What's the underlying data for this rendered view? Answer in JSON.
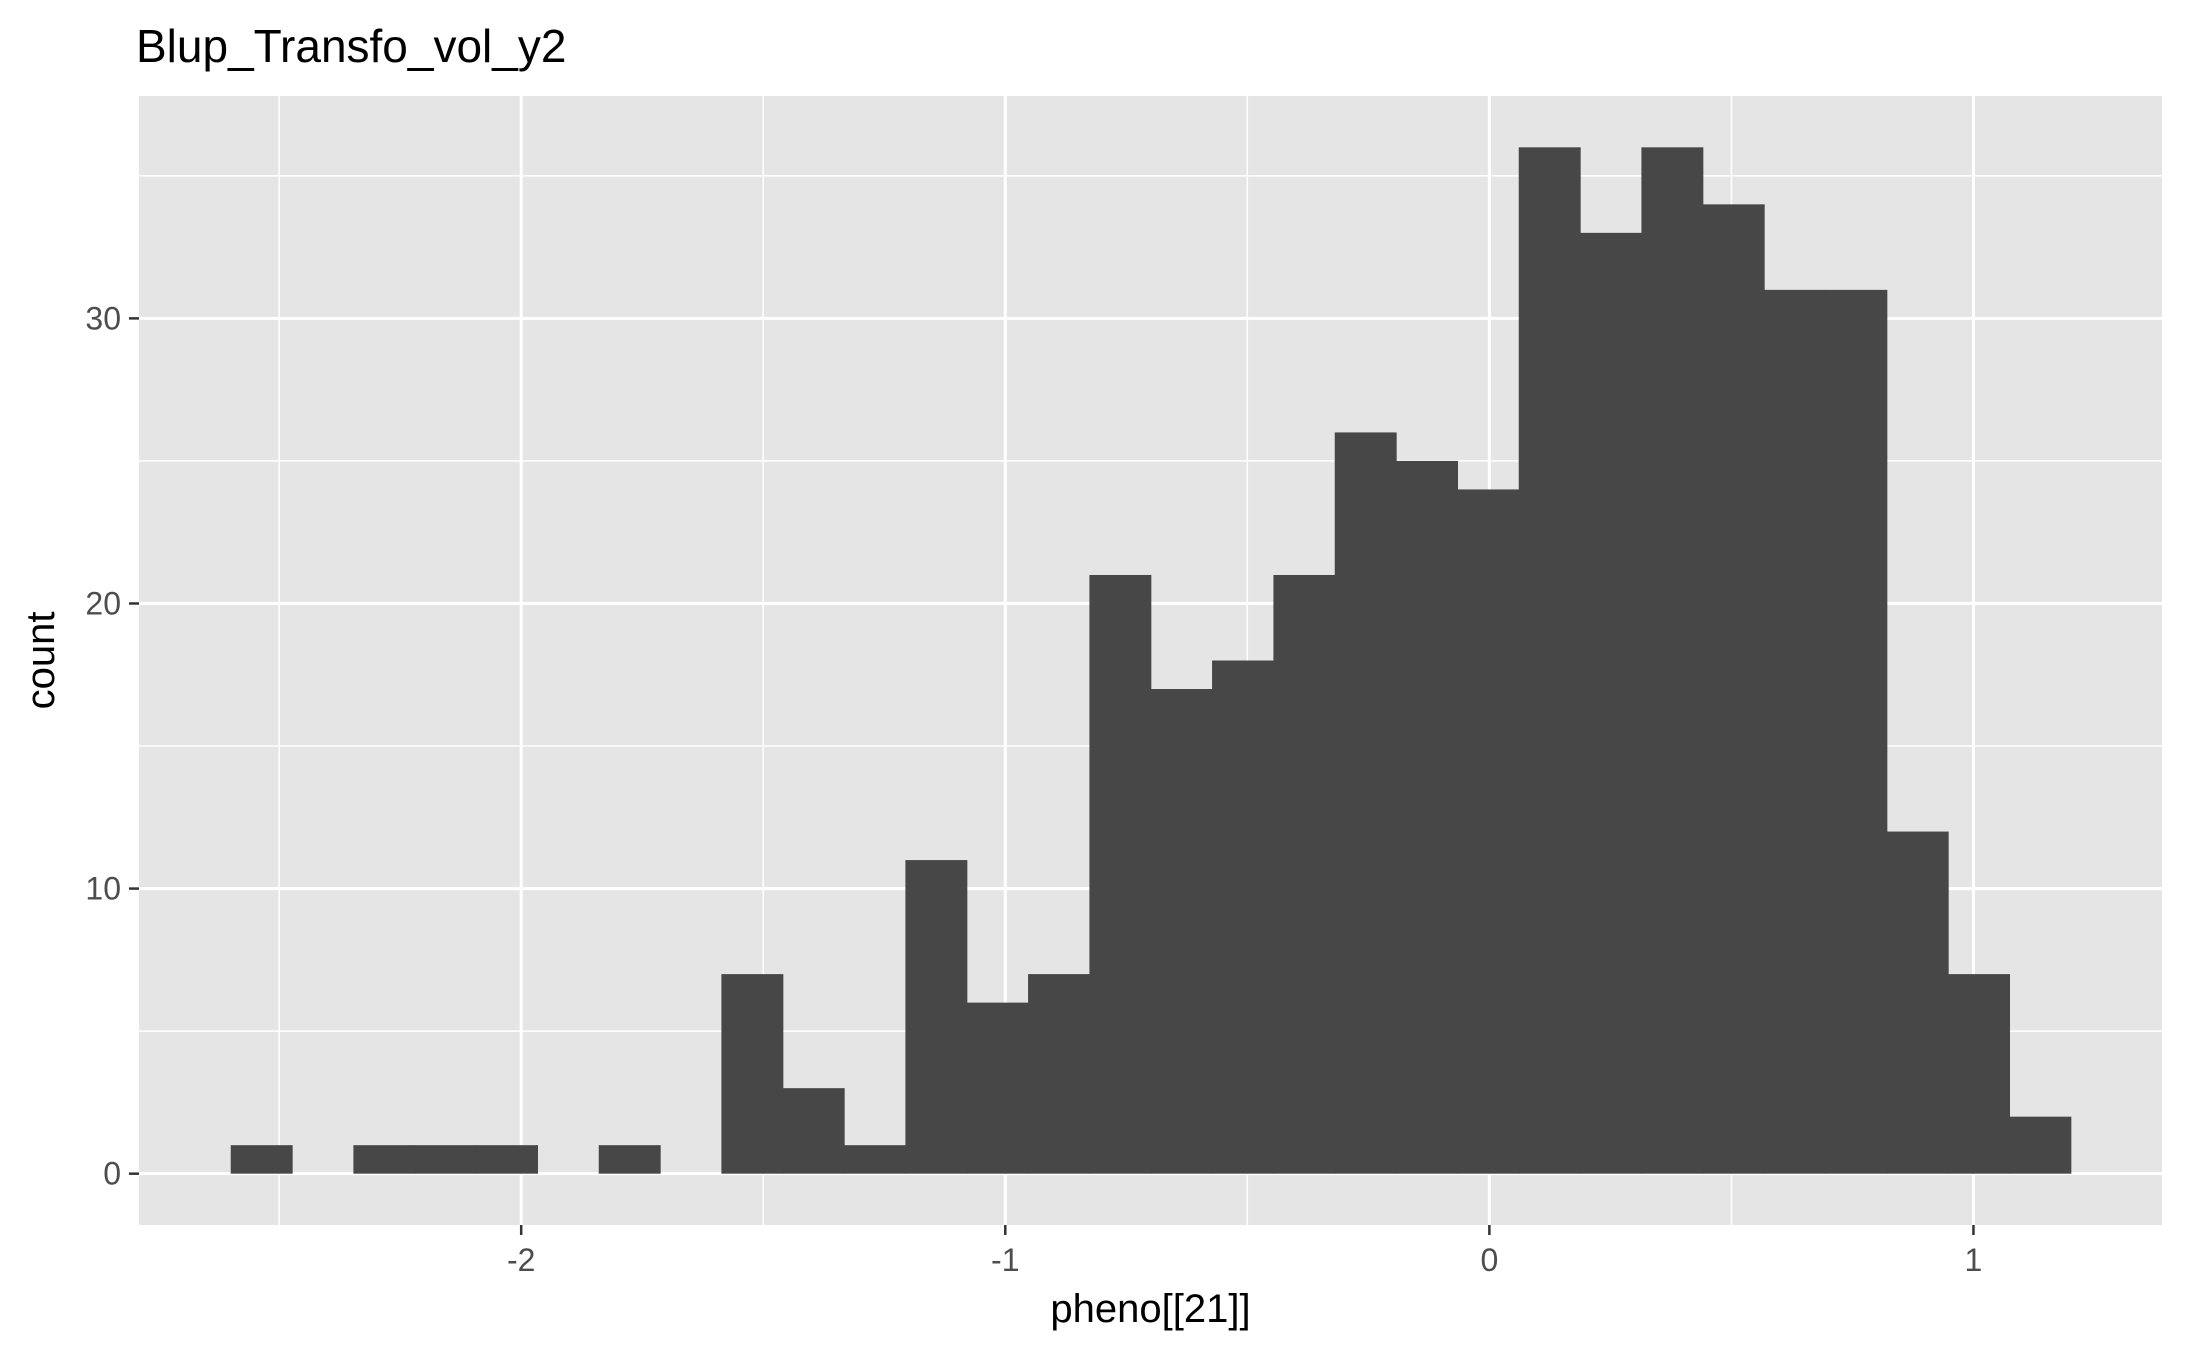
{
  "chart_data": {
    "type": "bar",
    "title": "Blup_Transfo_vol_y2",
    "xlabel": "pheno[[21]]",
    "ylabel": "count",
    "xlim": [
      -2.7895,
      1.3895
    ],
    "ylim": [
      -1.8,
      37.8
    ],
    "x_ticks": [
      -2,
      -1,
      0,
      1
    ],
    "x_tick_labels": [
      "-2",
      "-1",
      "0",
      "1"
    ],
    "y_ticks": [
      0,
      10,
      20,
      30
    ],
    "y_tick_labels": [
      "0",
      "10",
      "20",
      "30"
    ],
    "grid": true,
    "legend": "none",
    "colors": {
      "panel": "#e5e5e5",
      "bar": "#474747",
      "grid": "#ffffff",
      "tick_text": "#4d4d4d"
    },
    "bin_width": 0.1267,
    "bins": [
      {
        "x0": -2.6,
        "x1": -2.4733,
        "count": 1
      },
      {
        "x0": -2.4733,
        "x1": -2.3466,
        "count": 0
      },
      {
        "x0": -2.3466,
        "x1": -2.2199,
        "count": 1
      },
      {
        "x0": -2.2199,
        "x1": -2.0932,
        "count": 1
      },
      {
        "x0": -2.0932,
        "x1": -1.9665,
        "count": 1
      },
      {
        "x0": -1.9665,
        "x1": -1.8398,
        "count": 0
      },
      {
        "x0": -1.8398,
        "x1": -1.7131,
        "count": 1
      },
      {
        "x0": -1.7131,
        "x1": -1.5864,
        "count": 0
      },
      {
        "x0": -1.5864,
        "x1": -1.4597,
        "count": 7
      },
      {
        "x0": -1.4597,
        "x1": -1.333,
        "count": 3
      },
      {
        "x0": -1.333,
        "x1": -1.2063,
        "count": 1
      },
      {
        "x0": -1.2063,
        "x1": -1.0796,
        "count": 11
      },
      {
        "x0": -1.0796,
        "x1": -0.9529,
        "count": 6
      },
      {
        "x0": -0.9529,
        "x1": -0.8262,
        "count": 7
      },
      {
        "x0": -0.8262,
        "x1": -0.6995,
        "count": 21
      },
      {
        "x0": -0.6995,
        "x1": -0.5728,
        "count": 17
      },
      {
        "x0": -0.5728,
        "x1": -0.4461,
        "count": 18
      },
      {
        "x0": -0.4461,
        "x1": -0.3194,
        "count": 21
      },
      {
        "x0": -0.3194,
        "x1": -0.1927,
        "count": 26
      },
      {
        "x0": -0.1927,
        "x1": -0.066,
        "count": 25
      },
      {
        "x0": -0.066,
        "x1": 0.0607,
        "count": 24
      },
      {
        "x0": 0.0607,
        "x1": 0.1874,
        "count": 36
      },
      {
        "x0": 0.1874,
        "x1": 0.3141,
        "count": 33
      },
      {
        "x0": 0.3141,
        "x1": 0.4408,
        "count": 36
      },
      {
        "x0": 0.4408,
        "x1": 0.5675,
        "count": 34
      },
      {
        "x0": 0.5675,
        "x1": 0.6942,
        "count": 31
      },
      {
        "x0": 0.6942,
        "x1": 0.8209,
        "count": 31
      },
      {
        "x0": 0.8209,
        "x1": 0.9476,
        "count": 12
      },
      {
        "x0": 0.9476,
        "x1": 1.0743,
        "count": 7
      },
      {
        "x0": 1.0743,
        "x1": 1.201,
        "count": 2
      }
    ]
  }
}
